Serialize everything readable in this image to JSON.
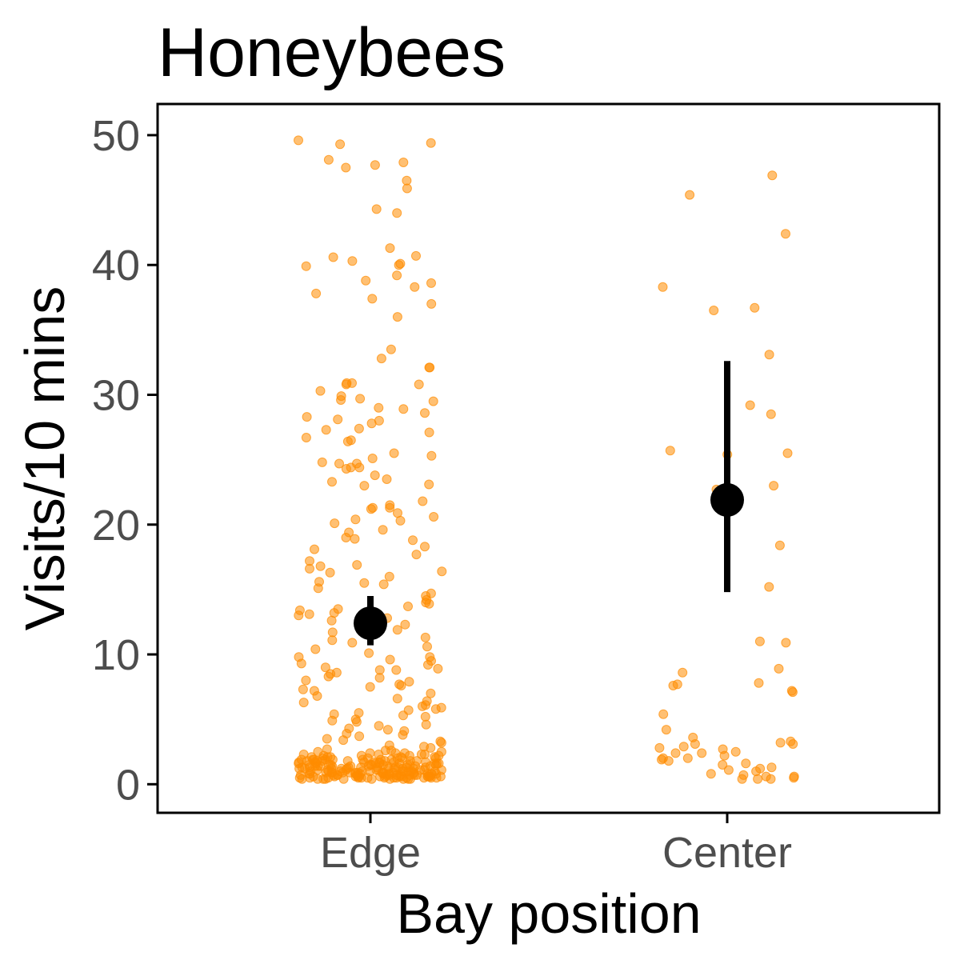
{
  "chart_data": {
    "type": "scatter",
    "title": "Honeybees",
    "xlabel": "Bay position",
    "ylabel": "Visits/10 mins",
    "categories": [
      "Edge",
      "Center"
    ],
    "ylim": [
      -2.2,
      52.4
    ],
    "yticks": [
      0,
      10,
      20,
      30,
      40,
      50
    ],
    "grid": false,
    "legend": "none",
    "point_color": "#ff8c00",
    "summary_color": "#000000",
    "series": [
      {
        "category": "Edge",
        "mean": 12.4,
        "ci_low": 10.7,
        "ci_high": 14.5,
        "values": [
          49.6,
          49.4,
          49.3,
          48.1,
          47.9,
          47.7,
          47.5,
          46.5,
          45.9,
          44.3,
          44.0,
          41.3,
          40.7,
          40.6,
          40.3,
          40.1,
          40.0,
          39.9,
          39.2,
          38.8,
          38.6,
          38.3,
          37.8,
          37.4,
          37.0,
          36.0,
          33.5,
          32.8,
          32.1,
          32.1,
          30.9,
          30.9,
          30.8,
          30.8,
          30.3,
          29.9,
          29.7,
          29.6,
          29.5,
          29.0,
          28.9,
          28.6,
          28.3,
          28.1,
          28.0,
          27.8,
          27.4,
          27.3,
          27.1,
          26.7,
          26.5,
          26.4,
          25.5,
          25.3,
          25.1,
          24.8,
          24.7,
          24.7,
          24.4,
          24.4,
          24.3,
          23.8,
          23.5,
          23.3,
          23.1,
          23.0,
          21.8,
          21.5,
          21.3,
          21.3,
          21.2,
          20.9,
          20.6,
          20.4,
          20.3,
          20.1,
          19.6,
          19.4,
          19.0,
          18.9,
          18.8,
          18.3,
          18.1,
          17.7,
          17.2,
          16.9,
          16.8,
          16.6,
          16.4,
          16.3,
          16.0,
          15.6,
          15.5,
          15.4,
          15.1,
          14.7,
          14.5,
          14.2,
          14.0,
          13.9,
          13.7,
          13.5,
          13.4,
          13.2,
          13.1,
          13.0,
          12.8,
          12.6,
          12.3,
          12.1,
          11.9,
          11.7,
          11.3,
          11.1,
          10.9,
          10.6,
          10.4,
          10.1,
          9.8,
          9.8,
          9.6,
          9.5,
          9.3,
          9.2,
          9.0,
          8.9,
          8.8,
          8.8,
          8.6,
          8.5,
          8.3,
          8.2,
          8.0,
          7.9,
          7.7,
          7.6,
          7.5,
          7.3,
          7.2,
          7.0,
          6.8,
          6.6,
          6.4,
          6.3,
          6.1,
          6.0,
          5.9,
          5.8,
          5.7,
          5.5,
          5.4,
          5.3,
          5.2,
          5.0,
          4.9,
          4.8,
          4.6,
          4.5,
          4.3,
          4.2,
          4.1,
          3.9,
          3.8,
          3.7,
          3.5,
          3.4,
          3.3,
          3.2,
          3.0,
          2.9,
          2.8,
          2.7,
          2.6,
          2.5,
          2.4,
          2.3,
          2.2,
          2.1,
          2.0,
          1.9,
          1.9,
          1.8,
          1.7,
          1.7,
          1.6,
          1.5,
          1.5,
          1.4,
          1.3,
          1.3,
          1.2,
          1.1,
          1.1,
          1.0,
          1.0,
          0.9,
          0.9,
          0.8,
          0.8,
          0.7,
          0.7,
          0.6,
          0.6,
          0.5,
          0.5,
          0.4,
          0.4,
          1.8,
          1.2,
          0.6,
          2.3,
          1.4,
          0.8,
          1.9,
          1.0,
          0.5,
          2.6,
          1.6,
          0.9,
          0.4,
          2.1,
          1.3,
          0.7,
          1.7,
          1.1,
          0.6,
          2.4,
          1.5,
          0.9,
          0.5,
          1.8,
          1.2,
          0.7,
          2.2,
          1.4,
          0.8,
          0.4,
          1.6,
          1.0,
          0.6,
          2.0,
          1.3,
          0.7,
          1.9,
          1.1,
          0.5,
          2.5,
          1.5,
          0.9,
          0.4,
          1.7,
          1.2,
          0.6,
          2.1,
          1.4,
          0.8,
          1.8,
          1.0,
          0.5,
          2.3,
          1.6,
          0.9,
          0.5,
          1.9,
          1.3,
          0.7,
          1.5,
          1.0,
          0.6,
          2.0,
          1.2,
          0.7,
          0.4,
          1.7,
          1.1,
          0.6,
          2.2,
          1.4,
          0.8,
          1.6,
          0.9,
          0.5,
          1.8,
          1.3,
          0.7,
          2.4,
          1.5,
          1.0,
          0.5,
          1.9,
          1.2,
          0.6,
          1.4,
          0.8,
          0.4,
          2.1,
          1.6,
          1.0,
          0.5,
          1.7,
          1.1,
          0.7,
          2.0,
          1.3,
          0.8,
          0.4,
          1.5,
          0.9,
          0.6,
          1.8,
          1.2,
          0.7,
          2.3,
          1.4,
          0.9,
          0.5,
          1.6,
          1.1,
          0.6,
          1.9,
          1.3,
          0.8,
          0.4,
          1.5,
          1.0,
          0.6,
          2.2,
          1.7,
          1.2,
          0.7,
          1.4,
          0.9,
          0.5,
          1.8,
          1.1,
          0.6,
          2.0,
          1.3,
          0.8,
          0.4,
          1.6,
          1.0,
          0.5,
          1.9,
          1.2,
          0.7,
          1.5,
          0.9,
          0.6,
          2.1,
          1.4,
          0.8
        ]
      },
      {
        "category": "Center",
        "mean": 21.9,
        "ci_low": 14.8,
        "ci_high": 32.6,
        "values": [
          46.9,
          45.4,
          42.4,
          38.3,
          36.7,
          36.5,
          33.1,
          29.2,
          28.5,
          25.7,
          25.5,
          25.4,
          23.0,
          22.7,
          18.4,
          15.2,
          11.0,
          10.9,
          8.9,
          8.6,
          7.8,
          7.7,
          7.6,
          7.2,
          7.1,
          5.4,
          4.2,
          3.6,
          3.3,
          3.2,
          3.1,
          3.1,
          2.9,
          2.8,
          2.7,
          2.5,
          2.4,
          2.4,
          2.2,
          2.0,
          2.0,
          1.9,
          1.8,
          1.6,
          1.5,
          1.3,
          1.2,
          1.1,
          1.0,
          0.8,
          0.7,
          0.6,
          0.6,
          0.5,
          0.4,
          0.4,
          0.4
        ]
      }
    ]
  }
}
